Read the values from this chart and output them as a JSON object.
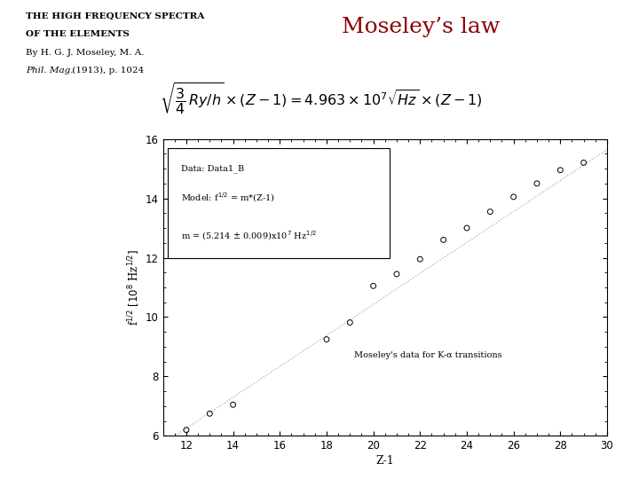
{
  "title_line1": "THE HIGH FREQUENCY SPECTRA",
  "title_line2": "OF THE ELEMENTS",
  "title_line3": "By H. G. J. Moseley, M. A.",
  "title_line4_italic": "Phil. Mag.",
  "title_line4_rest": " (1913), p. 1024",
  "moseley_law_title": "Moseley’s law",
  "moseley_law_color": "#8b0000",
  "formula_bg": "#ffff00",
  "data_points_x": [
    12,
    13,
    14,
    18,
    19,
    20,
    21,
    22,
    23,
    24,
    25,
    26,
    27,
    28,
    29
  ],
  "data_points_y": [
    6.2,
    6.75,
    7.05,
    9.25,
    9.82,
    11.05,
    11.45,
    11.95,
    12.6,
    13.0,
    13.55,
    14.05,
    14.5,
    14.95,
    15.2
  ],
  "fit_slope": 0.5214,
  "xlabel": "Z-1",
  "xlim": [
    11,
    30
  ],
  "ylim": [
    6,
    16
  ],
  "xticks": [
    12,
    14,
    16,
    18,
    20,
    22,
    24,
    26,
    28,
    30
  ],
  "yticks": [
    6,
    8,
    10,
    12,
    14,
    16
  ],
  "legend_text1": "Data: Data1_B",
  "legend_text2": "Model: f",
  "legend_text3": "m = (5.214 ± 0.009)x10",
  "annotation_text": "Moseley's data for K-α transitions",
  "bg_color": "#ffffff",
  "line_color": "#aaaaaa",
  "line_style": ":"
}
